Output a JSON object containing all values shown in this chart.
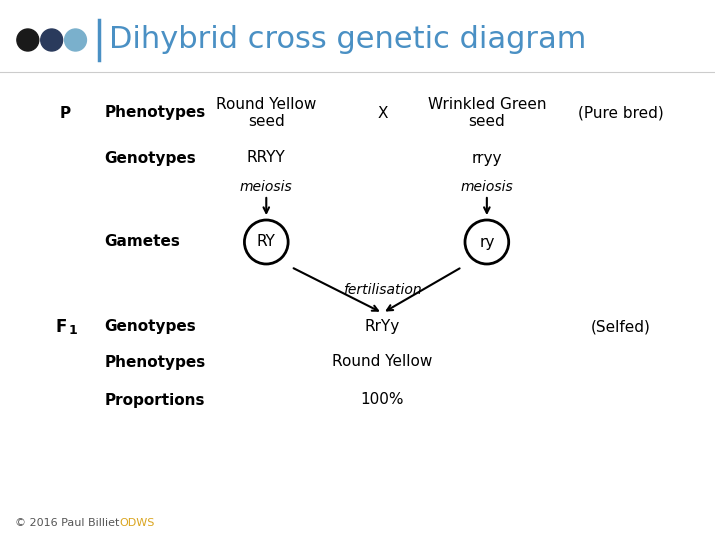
{
  "title": "Dihybrid cross genetic diagram",
  "title_color": "#4A90C4",
  "title_fontsize": 22,
  "bg_color": "#ffffff",
  "dot_colors": [
    "#1a1a1a",
    "#2a3a5c",
    "#7ab0cc"
  ],
  "header_line_color": "#4A90C4",
  "P_label": "P",
  "phenotypes_label": "Phenotypes",
  "phenotype_left": "Round Yellow\nseed",
  "cross_symbol": "X",
  "phenotype_right": "Wrinkled Green\nseed",
  "pure_bred": "(Pure bred)",
  "genotypes_label": "Genotypes",
  "genotype_left": "RRYY",
  "genotype_right": "rryy",
  "meiosis_left": "meiosis",
  "meiosis_right": "meiosis",
  "gametes_label": "Gametes",
  "gamete_left": "RY",
  "gamete_right": "ry",
  "fertilisation": "fertilisation",
  "F1_label": "F",
  "F1_sub": "1",
  "F1_genotypes_label": "Genotypes",
  "F1_genotype": "RrYy",
  "selfed": "(Selfed)",
  "phenotypes2_label": "Phenotypes",
  "phenotype2": "Round Yellow",
  "proportions_label": "Proportions",
  "proportion": "100%",
  "footer_main": "© 2016 Paul Billiet ",
  "footer_link": "ODWS",
  "footer_color": "#555555",
  "footer_link_color": "#DAA520"
}
